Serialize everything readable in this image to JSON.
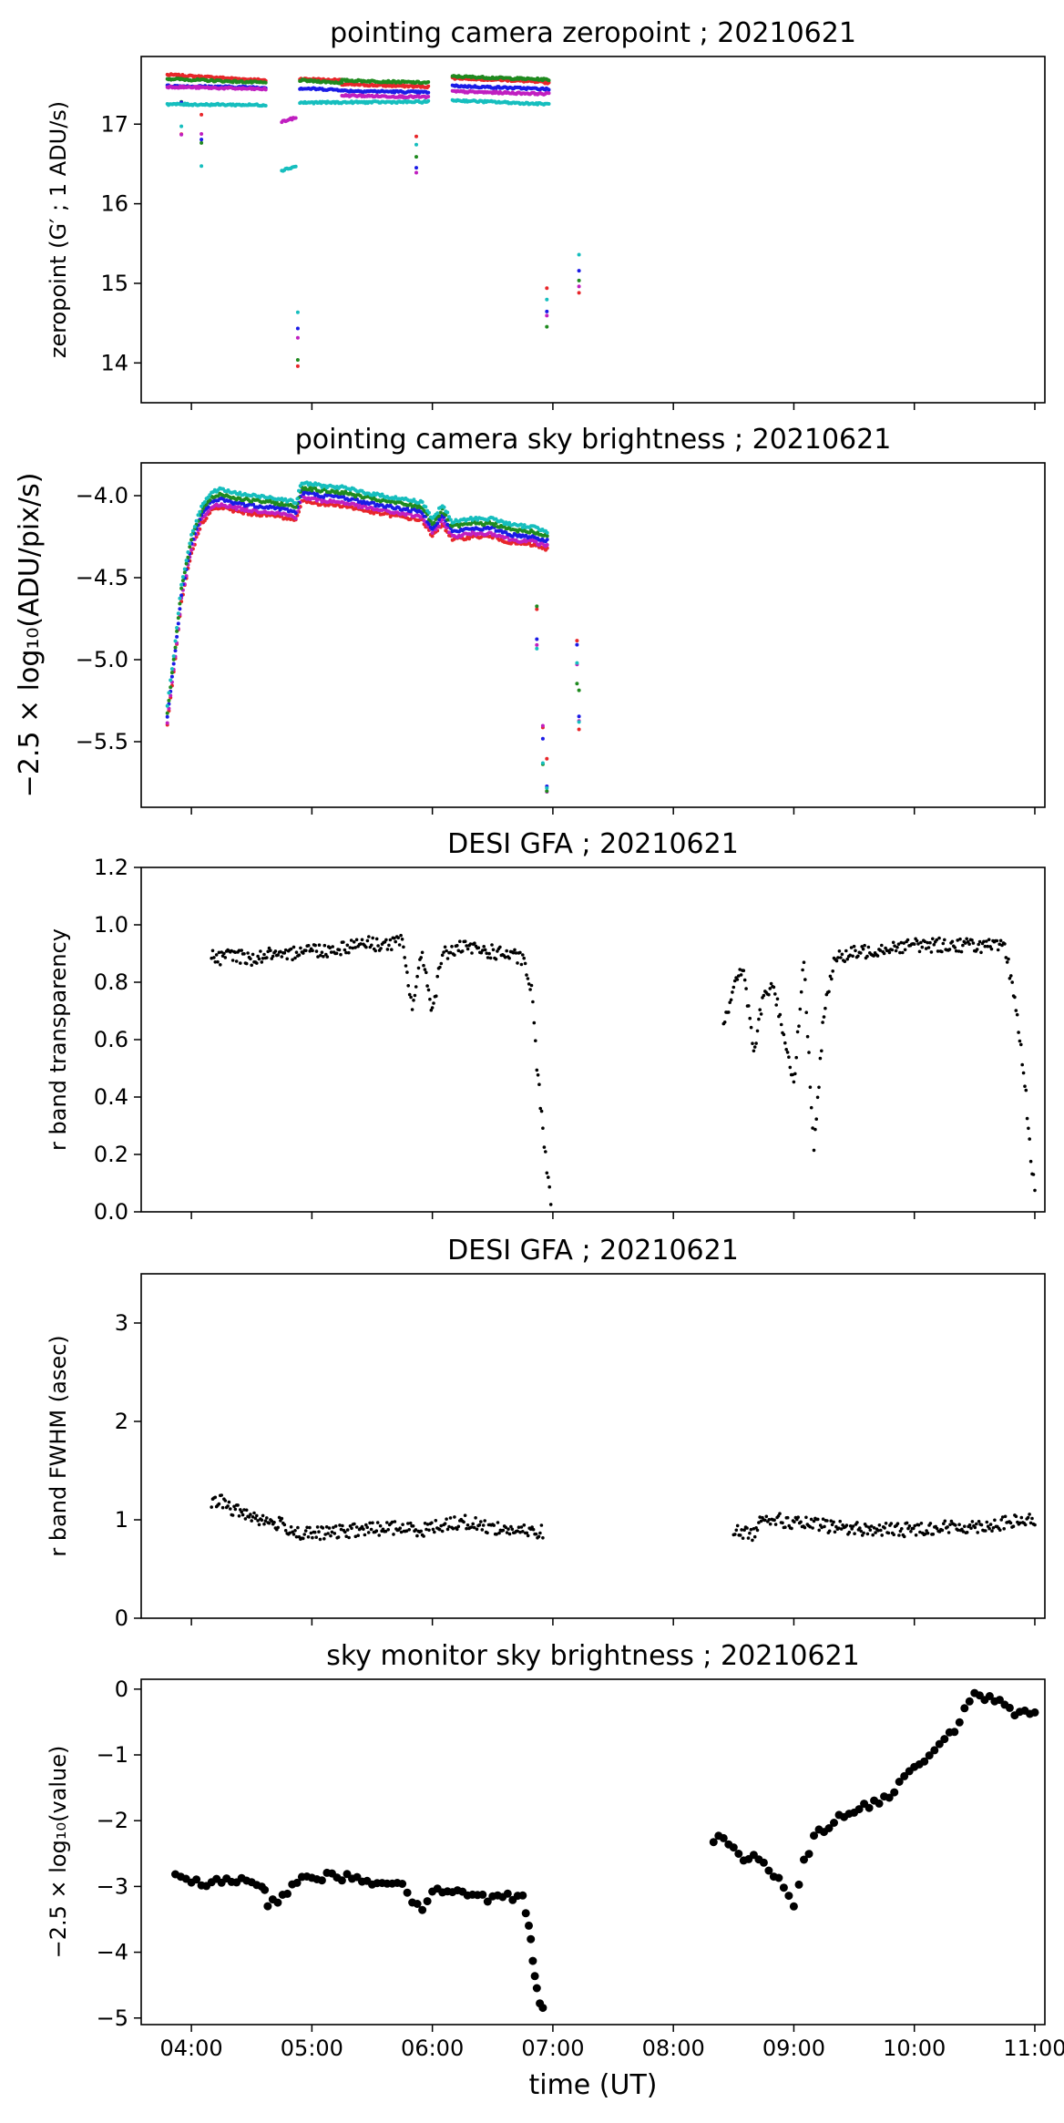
{
  "figure": {
    "xlabel": "time (UT)",
    "x_tick_labels": [
      "04:00",
      "05:00",
      "06:00",
      "07:00",
      "08:00",
      "09:00",
      "10:00",
      "11:00"
    ]
  },
  "chart_data": [
    {
      "type": "scatter",
      "title": "pointing camera zeropoint ; 20210621",
      "ylabel": "zeropoint (G′ ; 1 ADU/s)",
      "xlabel": "",
      "xlim": [
        "03:35",
        "11:05"
      ],
      "ylim": [
        13.5,
        17.85
      ],
      "yticks": [
        14,
        15,
        16,
        17
      ],
      "grid": false,
      "colors": {
        "red": "#e8262a",
        "green": "#1f8a1f",
        "blue": "#1b1be6",
        "magenta": "#c01fc0",
        "cyan": "#16bebe"
      },
      "series": [
        {
          "color": "red",
          "segments": [
            {
              "x": [
                "03:48",
                "04:37"
              ],
              "y": [
                17.62,
                17.55
              ]
            },
            {
              "x": [
                "04:54",
                "05:15"
              ],
              "y": [
                17.57,
                17.55
              ]
            },
            {
              "x": [
                "05:15",
                "05:58"
              ],
              "y": [
                17.5,
                17.47
              ]
            },
            {
              "x": [
                "06:10",
                "06:40"
              ],
              "y": [
                17.58,
                17.55
              ]
            },
            {
              "x": [
                "06:40",
                "06:58"
              ],
              "y": [
                17.55,
                17.52
              ]
            }
          ]
        },
        {
          "color": "green",
          "segments": [
            {
              "x": [
                "03:48",
                "04:37"
              ],
              "y": [
                17.57,
                17.52
              ]
            },
            {
              "x": [
                "04:54",
                "05:15"
              ],
              "y": [
                17.55,
                17.52
              ]
            },
            {
              "x": [
                "05:15",
                "05:58"
              ],
              "y": [
                17.55,
                17.52
              ]
            },
            {
              "x": [
                "06:10",
                "06:58"
              ],
              "y": [
                17.6,
                17.56
              ]
            }
          ]
        },
        {
          "color": "blue",
          "segments": [
            {
              "x": [
                "03:48",
                "04:37"
              ],
              "y": [
                17.48,
                17.46
              ]
            },
            {
              "x": [
                "04:54",
                "05:15"
              ],
              "y": [
                17.45,
                17.43
              ]
            },
            {
              "x": [
                "05:15",
                "05:58"
              ],
              "y": [
                17.42,
                17.4
              ]
            },
            {
              "x": [
                "06:10",
                "06:58"
              ],
              "y": [
                17.48,
                17.44
              ]
            }
          ]
        },
        {
          "color": "magenta",
          "segments": [
            {
              "x": [
                "03:48",
                "04:37"
              ],
              "y": [
                17.47,
                17.44
              ]
            },
            {
              "x": [
                "04:45",
                "04:52"
              ],
              "y": [
                17.03,
                17.08
              ]
            },
            {
              "x": [
                "05:15",
                "05:58"
              ],
              "y": [
                17.36,
                17.34
              ]
            },
            {
              "x": [
                "06:10",
                "06:58"
              ],
              "y": [
                17.41,
                17.38
              ]
            }
          ]
        },
        {
          "color": "cyan",
          "segments": [
            {
              "x": [
                "03:48",
                "04:37"
              ],
              "y": [
                17.25,
                17.24
              ]
            },
            {
              "x": [
                "04:45",
                "04:52"
              ],
              "y": [
                16.42,
                16.47
              ]
            },
            {
              "x": [
                "04:54",
                "05:58"
              ],
              "y": [
                17.27,
                17.28
              ]
            },
            {
              "x": [
                "06:10",
                "06:58"
              ],
              "y": [
                17.3,
                17.25
              ]
            }
          ]
        }
      ]
    },
    {
      "type": "scatter",
      "title": "pointing camera sky brightness ; 20210621",
      "ylabel": "−2.5 × log₁₀(ADU/pix/s)",
      "xlabel": "",
      "xlim": [
        "03:35",
        "11:05"
      ],
      "ylim": [
        -5.9,
        -3.8
      ],
      "yticks": [
        -5.5,
        -5.0,
        -4.5,
        -4.0
      ],
      "y_tick_labels": [
        "−5.5",
        "−5.0",
        "−4.5",
        "−4.0"
      ],
      "grid": false,
      "series": [
        {
          "color": "red",
          "offset": 0.05
        },
        {
          "color": "magenta",
          "offset": 0.03
        },
        {
          "color": "blue",
          "offset": 0.0
        },
        {
          "color": "green",
          "offset": -0.03
        },
        {
          "color": "cyan",
          "offset": -0.06
        }
      ],
      "base_curve": {
        "x": [
          "03:48",
          "03:52",
          "03:55",
          "04:00",
          "04:05",
          "04:10",
          "04:15",
          "04:20",
          "04:30",
          "04:40",
          "04:45",
          "04:52",
          "04:55",
          "05:05",
          "05:15",
          "05:30",
          "05:45",
          "05:55",
          "06:00",
          "06:05",
          "06:10",
          "06:20",
          "06:30",
          "06:40",
          "06:50",
          "06:58"
        ],
        "y": [
          -5.35,
          -4.95,
          -4.6,
          -4.3,
          -4.12,
          -4.04,
          -4.02,
          -4.04,
          -4.06,
          -4.07,
          -4.08,
          -4.1,
          -3.98,
          -4.0,
          -4.01,
          -4.05,
          -4.08,
          -4.1,
          -4.2,
          -4.12,
          -4.22,
          -4.2,
          -4.2,
          -4.24,
          -4.25,
          -4.28
        ]
      }
    },
    {
      "type": "scatter",
      "title": "DESI GFA ; 20210621",
      "ylabel": "r band transparency",
      "xlabel": "",
      "xlim": [
        "03:35",
        "11:05"
      ],
      "ylim": [
        0.0,
        1.2
      ],
      "yticks": [
        0.0,
        0.2,
        0.4,
        0.6,
        0.8,
        1.0,
        1.2
      ],
      "y_tick_labels": [
        "0.0",
        "0.2",
        "0.4",
        "0.6",
        "0.8",
        "1.0",
        "1.2"
      ],
      "grid": false,
      "points": [
        {
          "x": "04:10",
          "y": 0.89
        },
        {
          "x": "04:15",
          "y": 0.88
        },
        {
          "x": "04:20",
          "y": 0.9
        },
        {
          "x": "04:25",
          "y": 0.89
        },
        {
          "x": "04:30",
          "y": 0.88
        },
        {
          "x": "04:35",
          "y": 0.89
        },
        {
          "x": "04:40",
          "y": 0.9
        },
        {
          "x": "04:45",
          "y": 0.88
        },
        {
          "x": "04:55",
          "y": 0.92
        },
        {
          "x": "05:05",
          "y": 0.91
        },
        {
          "x": "05:15",
          "y": 0.92
        },
        {
          "x": "05:25",
          "y": 0.94
        },
        {
          "x": "05:35",
          "y": 0.93
        },
        {
          "x": "05:45",
          "y": 0.94
        },
        {
          "x": "05:48",
          "y": 0.8
        },
        {
          "x": "05:50",
          "y": 0.72
        },
        {
          "x": "05:55",
          "y": 0.9
        },
        {
          "x": "06:00",
          "y": 0.7
        },
        {
          "x": "06:05",
          "y": 0.9
        },
        {
          "x": "06:15",
          "y": 0.92
        },
        {
          "x": "06:25",
          "y": 0.91
        },
        {
          "x": "06:35",
          "y": 0.9
        },
        {
          "x": "06:45",
          "y": 0.88
        },
        {
          "x": "06:50",
          "y": 0.75
        },
        {
          "x": "06:52",
          "y": 0.5
        },
        {
          "x": "06:55",
          "y": 0.3
        },
        {
          "x": "06:57",
          "y": 0.15
        },
        {
          "x": "06:59",
          "y": 0.05
        },
        {
          "x": "08:25",
          "y": 0.66
        },
        {
          "x": "08:30",
          "y": 0.78
        },
        {
          "x": "08:35",
          "y": 0.85
        },
        {
          "x": "08:40",
          "y": 0.55
        },
        {
          "x": "08:45",
          "y": 0.76
        },
        {
          "x": "08:50",
          "y": 0.78
        },
        {
          "x": "08:55",
          "y": 0.62
        },
        {
          "x": "09:00",
          "y": 0.45
        },
        {
          "x": "09:05",
          "y": 0.88
        },
        {
          "x": "09:10",
          "y": 0.2
        },
        {
          "x": "09:15",
          "y": 0.7
        },
        {
          "x": "09:20",
          "y": 0.88
        },
        {
          "x": "09:30",
          "y": 0.9
        },
        {
          "x": "09:45",
          "y": 0.92
        },
        {
          "x": "10:00",
          "y": 0.93
        },
        {
          "x": "10:15",
          "y": 0.93
        },
        {
          "x": "10:30",
          "y": 0.93
        },
        {
          "x": "10:45",
          "y": 0.92
        },
        {
          "x": "10:50",
          "y": 0.75
        },
        {
          "x": "10:55",
          "y": 0.45
        },
        {
          "x": "10:58",
          "y": 0.2
        },
        {
          "x": "11:00",
          "y": 0.06
        }
      ]
    },
    {
      "type": "scatter",
      "title": "DESI GFA ; 20210621",
      "ylabel": "r band FWHM (asec)",
      "xlabel": "",
      "xlim": [
        "03:35",
        "11:05"
      ],
      "ylim": [
        0,
        3.5
      ],
      "yticks": [
        0,
        1,
        2,
        3
      ],
      "grid": false,
      "points": [
        {
          "x": "04:10",
          "y": 1.15
        },
        {
          "x": "04:15",
          "y": 1.2
        },
        {
          "x": "04:20",
          "y": 1.1
        },
        {
          "x": "04:25",
          "y": 1.08
        },
        {
          "x": "04:30",
          "y": 1.05
        },
        {
          "x": "04:35",
          "y": 1.0
        },
        {
          "x": "04:40",
          "y": 0.97
        },
        {
          "x": "04:45",
          "y": 0.95
        },
        {
          "x": "04:55",
          "y": 0.85
        },
        {
          "x": "05:10",
          "y": 0.87
        },
        {
          "x": "05:25",
          "y": 0.9
        },
        {
          "x": "05:40",
          "y": 0.92
        },
        {
          "x": "05:55",
          "y": 0.9
        },
        {
          "x": "06:05",
          "y": 0.95
        },
        {
          "x": "06:15",
          "y": 0.98
        },
        {
          "x": "06:30",
          "y": 0.92
        },
        {
          "x": "06:45",
          "y": 0.88
        },
        {
          "x": "06:55",
          "y": 0.88
        },
        {
          "x": "08:30",
          "y": 0.88
        },
        {
          "x": "08:40",
          "y": 0.86
        },
        {
          "x": "08:45",
          "y": 1.05
        },
        {
          "x": "08:55",
          "y": 0.98
        },
        {
          "x": "09:10",
          "y": 0.95
        },
        {
          "x": "09:25",
          "y": 0.92
        },
        {
          "x": "09:40",
          "y": 0.9
        },
        {
          "x": "09:55",
          "y": 0.9
        },
        {
          "x": "10:10",
          "y": 0.92
        },
        {
          "x": "10:25",
          "y": 0.93
        },
        {
          "x": "10:40",
          "y": 0.95
        },
        {
          "x": "10:50",
          "y": 0.98
        },
        {
          "x": "11:00",
          "y": 1.0
        }
      ]
    },
    {
      "type": "scatter",
      "title": "sky monitor sky brightness ; 20210621",
      "ylabel": "−2.5 × log₁₀(value)",
      "xlabel": "time (UT)",
      "xlim": [
        "03:35",
        "11:05"
      ],
      "ylim": [
        -5.1,
        0.15
      ],
      "yticks": [
        -5,
        -4,
        -3,
        -2,
        -1,
        0
      ],
      "y_tick_labels": [
        "−5",
        "−4",
        "−3",
        "−2",
        "−1",
        "0"
      ],
      "grid": false,
      "points": [
        {
          "x": "03:52",
          "y": -2.87
        },
        {
          "x": "04:00",
          "y": -2.93
        },
        {
          "x": "04:10",
          "y": -2.95
        },
        {
          "x": "04:20",
          "y": -2.93
        },
        {
          "x": "04:30",
          "y": -2.93
        },
        {
          "x": "04:35",
          "y": -2.95
        },
        {
          "x": "04:38",
          "y": -3.25
        },
        {
          "x": "04:43",
          "y": -3.22
        },
        {
          "x": "04:55",
          "y": -2.82
        },
        {
          "x": "05:05",
          "y": -2.85
        },
        {
          "x": "05:15",
          "y": -2.85
        },
        {
          "x": "05:25",
          "y": -2.92
        },
        {
          "x": "05:35",
          "y": -2.92
        },
        {
          "x": "05:45",
          "y": -2.95
        },
        {
          "x": "05:50",
          "y": -3.2
        },
        {
          "x": "05:55",
          "y": -3.3
        },
        {
          "x": "06:00",
          "y": -3.1
        },
        {
          "x": "06:10",
          "y": -3.05
        },
        {
          "x": "06:20",
          "y": -3.1
        },
        {
          "x": "06:30",
          "y": -3.2
        },
        {
          "x": "06:40",
          "y": -3.15
        },
        {
          "x": "06:45",
          "y": -3.1
        },
        {
          "x": "06:48",
          "y": -3.6
        },
        {
          "x": "06:50",
          "y": -4.1
        },
        {
          "x": "06:52",
          "y": -4.55
        },
        {
          "x": "06:55",
          "y": -4.9
        },
        {
          "x": "08:20",
          "y": -2.3
        },
        {
          "x": "08:25",
          "y": -2.25
        },
        {
          "x": "08:35",
          "y": -2.55
        },
        {
          "x": "08:45",
          "y": -2.6
        },
        {
          "x": "08:55",
          "y": -3.0
        },
        {
          "x": "09:00",
          "y": -3.25
        },
        {
          "x": "09:05",
          "y": -2.65
        },
        {
          "x": "09:10",
          "y": -2.25
        },
        {
          "x": "09:20",
          "y": -2.0
        },
        {
          "x": "09:30",
          "y": -1.85
        },
        {
          "x": "09:40",
          "y": -1.75
        },
        {
          "x": "09:50",
          "y": -1.55
        },
        {
          "x": "10:00",
          "y": -1.2
        },
        {
          "x": "10:10",
          "y": -0.9
        },
        {
          "x": "10:20",
          "y": -0.6
        },
        {
          "x": "10:30",
          "y": -0.1
        },
        {
          "x": "10:40",
          "y": -0.15
        },
        {
          "x": "10:50",
          "y": -0.4
        },
        {
          "x": "11:00",
          "y": -0.3
        }
      ]
    }
  ]
}
